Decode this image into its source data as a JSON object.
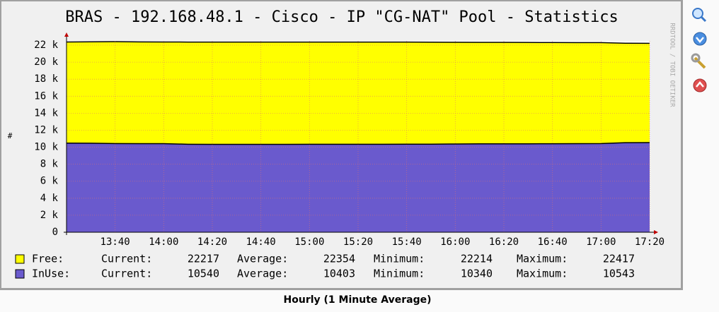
{
  "chart_data": {
    "type": "area",
    "title": "BRAS - 192.168.48.1 - Cisco - IP \"CG-NAT\" Pool - Statistics",
    "ylabel": "#",
    "watermark": "RRDTOOL / TOBI OETIKER",
    "footer": "Hourly (1 Minute Average)",
    "x": [
      "13:20",
      "13:30",
      "13:40",
      "13:50",
      "14:00",
      "14:10",
      "14:20",
      "14:30",
      "14:40",
      "14:50",
      "15:00",
      "15:10",
      "15:20",
      "15:30",
      "15:40",
      "15:50",
      "16:00",
      "16:10",
      "16:20",
      "16:30",
      "16:40",
      "16:50",
      "17:00",
      "17:10",
      "17:20"
    ],
    "xlim": [
      "13:20",
      "17:20"
    ],
    "xticks": [
      "13:40",
      "14:00",
      "14:20",
      "14:40",
      "15:00",
      "15:20",
      "15:40",
      "16:00",
      "16:20",
      "16:40",
      "17:00",
      "17:20"
    ],
    "ylim": [
      0,
      22500
    ],
    "yticks": [
      0,
      {
        "value": 2000,
        "label": "2 k"
      },
      {
        "value": 4000,
        "label": "4 k"
      },
      {
        "value": 6000,
        "label": "6 k"
      },
      {
        "value": 8000,
        "label": "8 k"
      },
      {
        "value": 10000,
        "label": "10 k"
      },
      {
        "value": 12000,
        "label": "12 k"
      },
      {
        "value": 14000,
        "label": "14 k"
      },
      {
        "value": 16000,
        "label": "16 k"
      },
      {
        "value": 18000,
        "label": "18 k"
      },
      {
        "value": 20000,
        "label": "20 k"
      },
      {
        "value": 22000,
        "label": "22 k"
      }
    ],
    "grid": true,
    "series": [
      {
        "name": "Free:",
        "color": "#ffff00",
        "values": [
          22380,
          22400,
          22417,
          22390,
          22380,
          22370,
          22360,
          22360,
          22360,
          22360,
          22360,
          22360,
          22360,
          22360,
          22360,
          22350,
          22340,
          22330,
          22330,
          22320,
          22310,
          22300,
          22300,
          22230,
          22217
        ],
        "stats": [
          {
            "label": "Current:",
            "value": 22217
          },
          {
            "label": "Average:",
            "value": 22354
          },
          {
            "label": "Minimum:",
            "value": 22214
          },
          {
            "label": "Maximum:",
            "value": 22417
          }
        ]
      },
      {
        "name": "InUse:",
        "color": "#6a5acd",
        "values": [
          10480,
          10470,
          10430,
          10420,
          10420,
          10350,
          10340,
          10340,
          10340,
          10340,
          10350,
          10350,
          10350,
          10350,
          10360,
          10360,
          10380,
          10400,
          10400,
          10400,
          10410,
          10420,
          10430,
          10530,
          10540
        ],
        "stats": [
          {
            "label": "Current:",
            "value": 10540
          },
          {
            "label": "Average:",
            "value": 10403
          },
          {
            "label": "Minimum:",
            "value": 10340
          },
          {
            "label": "Maximum:",
            "value": 10543
          }
        ]
      }
    ]
  }
}
